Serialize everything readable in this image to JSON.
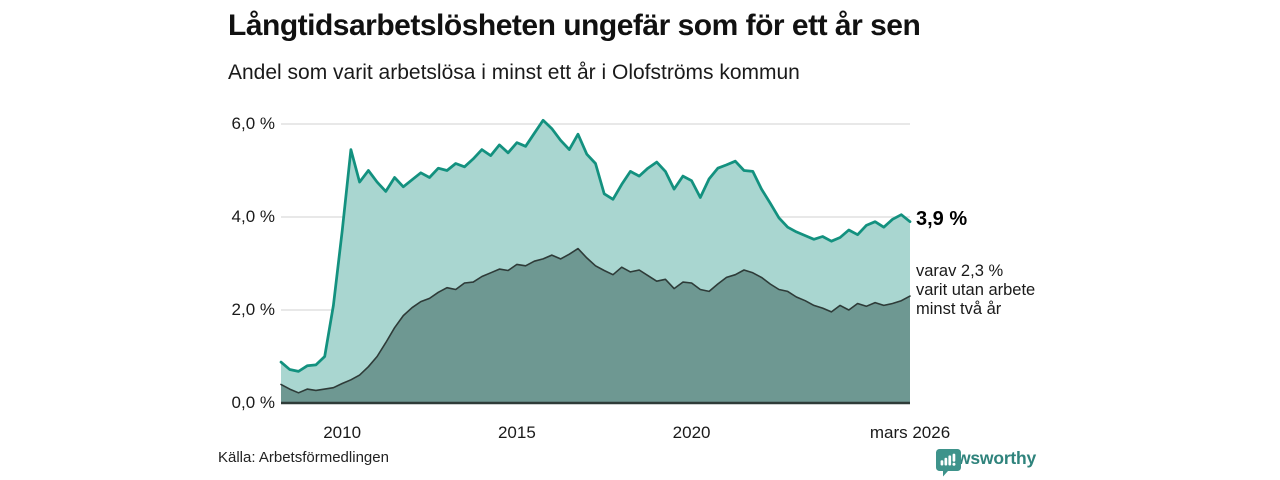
{
  "header": {
    "title": "Långtidsarbetslösheten ungefär som för ett år sen",
    "subtitle": "Andel som varit arbetslösa i minst ett år i Olofströms kommun"
  },
  "chart_data": {
    "type": "area",
    "title": "Långtidsarbetslösheten ungefär som för ett år sen",
    "subtitle": "Andel som varit arbetslösa i minst ett år i Olofströms kommun",
    "x_unit": "decimal_year_monthly_series",
    "x_start": 2008.25,
    "x_step": 0.25,
    "xlim": [
      2008.25,
      2026.25
    ],
    "ylim": [
      0,
      6.4
    ],
    "grid": "horizontal",
    "y_ticks": [
      {
        "label": "6,0 %",
        "value": 6.0
      },
      {
        "label": "4,0 %",
        "value": 4.0
      },
      {
        "label": "2,0 %",
        "value": 2.0
      },
      {
        "label": "0,0 %",
        "value": 0.0
      }
    ],
    "x_ticks": [
      {
        "label": "2010",
        "year": 2010
      },
      {
        "label": "2015",
        "year": 2015
      },
      {
        "label": "2020",
        "year": 2020
      },
      {
        "label": "mars 2026",
        "year": 2026.25
      }
    ],
    "series": [
      {
        "name": "Andel som varit arbetslösa i minst ett år",
        "line_color": "#13917F",
        "fill_color": "#A9D6D0",
        "line_width": 2.75,
        "values": [
          0.88,
          0.72,
          0.68,
          0.8,
          0.82,
          1.0,
          2.1,
          3.7,
          5.45,
          4.75,
          5.0,
          4.75,
          4.55,
          4.85,
          4.65,
          4.8,
          4.95,
          4.85,
          5.05,
          5.0,
          5.15,
          5.08,
          5.25,
          5.45,
          5.32,
          5.55,
          5.38,
          5.6,
          5.52,
          5.8,
          6.08,
          5.9,
          5.65,
          5.45,
          5.78,
          5.35,
          5.15,
          4.5,
          4.38,
          4.7,
          4.98,
          4.88,
          5.05,
          5.18,
          4.98,
          4.6,
          4.88,
          4.78,
          4.42,
          4.82,
          5.05,
          5.12,
          5.2,
          5.0,
          4.98,
          4.6,
          4.3,
          3.98,
          3.78,
          3.68,
          3.6,
          3.52,
          3.58,
          3.48,
          3.56,
          3.72,
          3.62,
          3.82,
          3.9,
          3.78,
          3.95,
          4.05,
          3.9
        ]
      },
      {
        "name": "Andel som varit utan arbete minst två år",
        "line_color": "#2E3B38",
        "fill_color": "#6E9892",
        "line_width": 1.6,
        "values": [
          0.4,
          0.3,
          0.22,
          0.3,
          0.27,
          0.3,
          0.33,
          0.42,
          0.5,
          0.6,
          0.78,
          1.0,
          1.3,
          1.62,
          1.88,
          2.05,
          2.18,
          2.25,
          2.38,
          2.48,
          2.44,
          2.58,
          2.6,
          2.72,
          2.8,
          2.88,
          2.85,
          2.98,
          2.95,
          3.05,
          3.1,
          3.18,
          3.1,
          3.2,
          3.32,
          3.12,
          2.95,
          2.85,
          2.76,
          2.92,
          2.82,
          2.86,
          2.74,
          2.62,
          2.66,
          2.46,
          2.6,
          2.58,
          2.44,
          2.4,
          2.56,
          2.7,
          2.76,
          2.86,
          2.8,
          2.7,
          2.56,
          2.44,
          2.4,
          2.28,
          2.2,
          2.1,
          2.04,
          1.96,
          2.1,
          2.0,
          2.14,
          2.08,
          2.16,
          2.1,
          2.14,
          2.2,
          2.3
        ]
      }
    ],
    "annotations": {
      "end_value_total": "3,9 %",
      "end_value_breakdown": "varav 2,3 %\nvarit utan arbete\nminst två år"
    },
    "colors": {
      "grid": "#DBDBDB",
      "baseline": "#2E3B38",
      "text": "#1A1A1A",
      "brand_teal": "#2F837C",
      "logo_teal": "#3E938B"
    }
  },
  "footer": {
    "source": "Källa: Arbetsförmedlingen",
    "brand": "Newsworthy"
  }
}
